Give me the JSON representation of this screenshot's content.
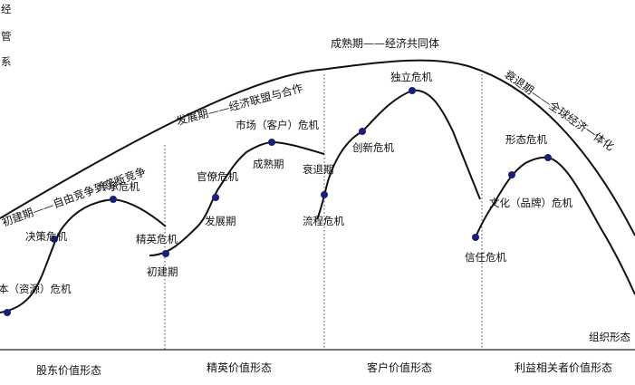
{
  "big_curve": {
    "peak_label": "成熟期——经济共同体",
    "stage_labels": [
      "初建期——自由竞争到垄断竞争",
      "发展期——经济联盟与合作",
      "衰退期——全球经济一体化"
    ]
  },
  "corner_fragments": [
    "经",
    "管",
    "系"
  ],
  "phases": [
    {
      "name": "股东价值形态",
      "labels": {
        "crisis1": "本（资源）危机",
        "crisis2": "决策危机",
        "crisis3": "传承危机"
      }
    },
    {
      "name": "精英价值形态",
      "labels": {
        "top": "精英危机",
        "start": "初建期",
        "crisis1": "官僚危机",
        "grow": "发展期",
        "crisis2": "市场（客户）危机",
        "mature": "成熟期"
      }
    },
    {
      "name": "客户价值形态",
      "labels": {
        "decline": "衰退期",
        "crisis1": "流程危机",
        "crisis2": "创新危机",
        "crisis3": "独立危机"
      }
    },
    {
      "name": "利益相关者价值形态",
      "labels": {
        "crisis1": "信任危机",
        "crisis2": "文化（品牌）危机",
        "crisis3": "形态危机"
      }
    }
  ],
  "axis_label": "组织形态"
}
